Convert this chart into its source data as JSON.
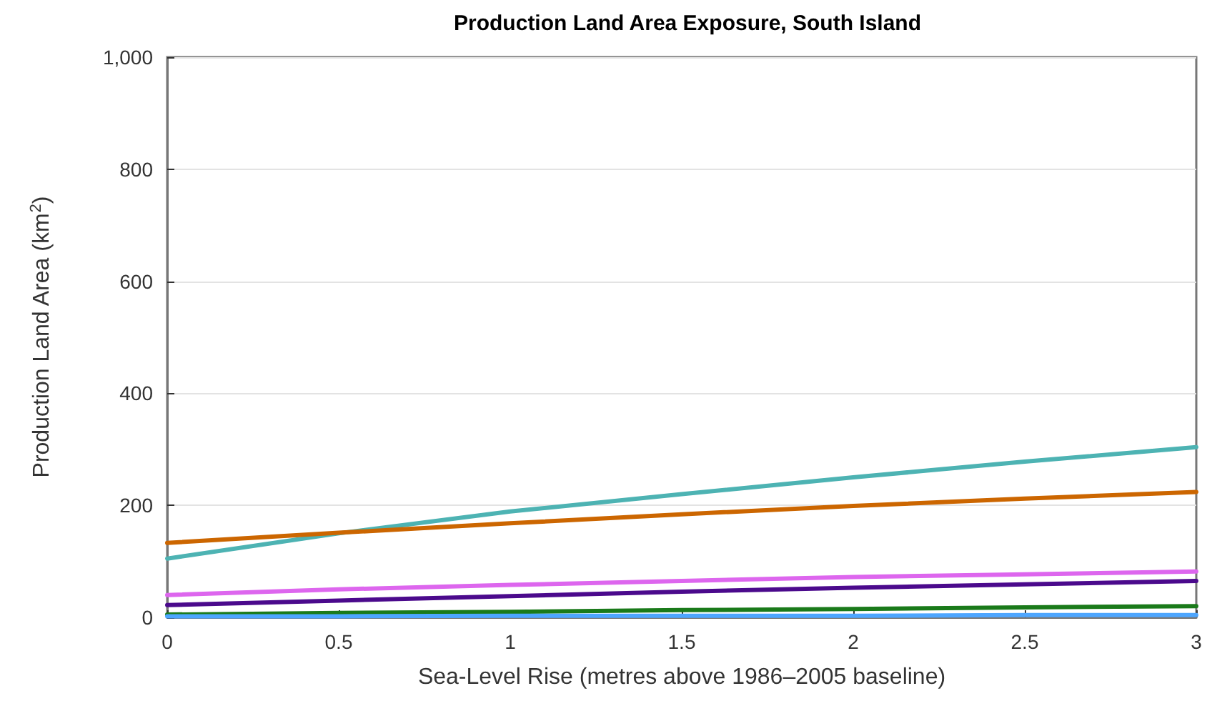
{
  "chart_data": {
    "type": "line",
    "title": "Production Land Area Exposure, South Island",
    "xlabel": "Sea-Level Rise (metres above 1986–2005 baseline)",
    "ylabel": "Production Land Area (km$^{2}$)",
    "x": [
      0,
      0.5,
      1,
      1.5,
      2,
      2.5,
      3
    ],
    "series": [
      {
        "color": "#4db3b3",
        "values": [
          105,
          150,
          189,
          220,
          250,
          278,
          304
        ]
      },
      {
        "color": "#cc6600",
        "values": [
          133,
          151,
          168,
          184,
          199,
          212,
          224
        ]
      },
      {
        "color": "#dd66ee",
        "values": [
          40,
          50,
          58,
          65,
          72,
          77,
          82
        ]
      },
      {
        "color": "#4b0a8c",
        "values": [
          22,
          30,
          38,
          46,
          53,
          59,
          65
        ]
      },
      {
        "color": "#1a7a1a",
        "values": [
          5,
          8,
          10,
          13,
          15,
          18,
          20
        ]
      },
      {
        "color": "#4da6ff",
        "values": [
          2,
          2,
          3,
          3,
          3,
          4,
          4
        ]
      }
    ],
    "xlim": [
      0,
      3
    ],
    "xticks": [
      0,
      0.5,
      1,
      1.5,
      2,
      2.5,
      3
    ],
    "ylim": [
      0,
      1000
    ],
    "yticks": [
      0,
      200,
      400,
      600,
      800,
      {
        "value": 1000,
        "label": "1,000"
      }
    ],
    "grid": "y",
    "marker": "none",
    "line_style": "solid"
  }
}
